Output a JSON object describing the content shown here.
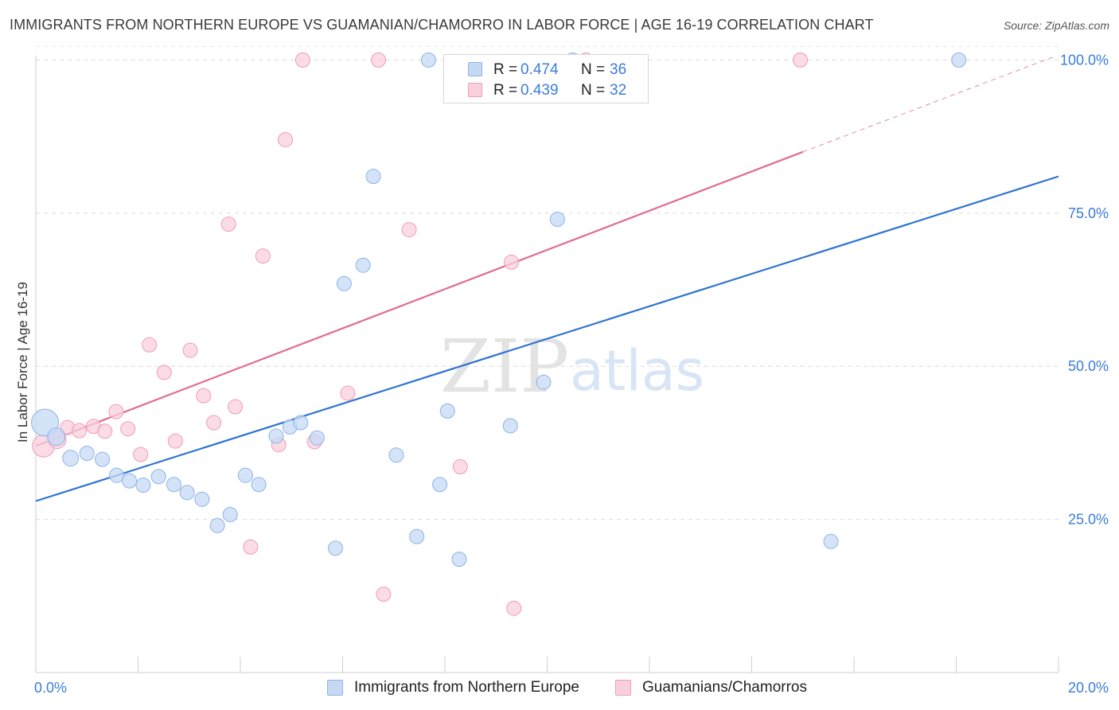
{
  "title": "IMMIGRANTS FROM NORTHERN EUROPE VS GUAMANIAN/CHAMORRO IN LABOR FORCE | AGE 16-19 CORRELATION CHART",
  "source": "Source: ZipAtlas.com",
  "watermark": {
    "zip": "ZIP",
    "atlas": "atlas"
  },
  "legend": {
    "r_label": "R =",
    "n_label": "N =",
    "rows": [
      {
        "r": "0.474",
        "n": "36"
      },
      {
        "r": "0.439",
        "n": "32"
      }
    ]
  },
  "colors": {
    "blue_fill": "#c5d9f5",
    "blue_stroke": "#8db3e8",
    "blue_line": "#2f74d0",
    "pink_fill": "#f9cfdc",
    "pink_stroke": "#ef9db6",
    "pink_line": "#e06b93",
    "tick_text": "#3b7dd8"
  },
  "chart_data": {
    "type": "scatter",
    "title": "IMMIGRANTS FROM NORTHERN EUROPE VS GUAMANIAN/CHAMORRO IN LABOR FORCE | AGE 16-19 CORRELATION CHART",
    "xlabel": "",
    "ylabel": "In Labor Force | Age 16-19",
    "xlim": [
      0,
      20
    ],
    "ylim": [
      0,
      102
    ],
    "x_tick_labels": [
      "0.0%",
      "20.0%"
    ],
    "y_ticks": [
      25,
      50,
      75,
      100
    ],
    "y_tick_labels": [
      "25.0%",
      "50.0%",
      "75.0%",
      "100.0%"
    ],
    "grid": true,
    "legend_position": "top-center",
    "series": [
      {
        "name": "Immigrants from Northern Europe",
        "r": 0.474,
        "n": 36,
        "trend": {
          "x0": 0,
          "y0": 28.0,
          "x1": 20,
          "y1": 81.0
        },
        "points": [
          [
            0.18,
            40.8,
            17
          ],
          [
            0.4,
            38.5,
            11
          ],
          [
            0.68,
            35.0,
            10
          ],
          [
            1.0,
            35.8,
            9
          ],
          [
            1.3,
            34.8,
            9
          ],
          [
            1.58,
            32.2,
            9
          ],
          [
            1.83,
            31.3,
            9
          ],
          [
            2.1,
            30.6,
            9
          ],
          [
            2.4,
            32.0,
            9
          ],
          [
            2.7,
            30.7,
            9
          ],
          [
            2.96,
            29.4,
            9
          ],
          [
            3.25,
            28.3,
            9
          ],
          [
            3.55,
            24.0,
            9
          ],
          [
            3.8,
            25.8,
            9
          ],
          [
            4.1,
            32.2,
            9
          ],
          [
            4.36,
            30.7,
            9
          ],
          [
            4.7,
            38.6,
            9
          ],
          [
            4.97,
            40.1,
            9
          ],
          [
            5.18,
            40.8,
            9
          ],
          [
            5.5,
            38.3,
            9
          ],
          [
            5.86,
            20.3,
            9
          ],
          [
            6.03,
            63.5,
            9
          ],
          [
            6.4,
            66.5,
            9
          ],
          [
            6.6,
            81.0,
            9
          ],
          [
            7.05,
            35.5,
            9
          ],
          [
            7.45,
            22.2,
            9
          ],
          [
            7.68,
            100.0,
            9
          ],
          [
            7.9,
            30.7,
            9
          ],
          [
            8.05,
            42.7,
            9
          ],
          [
            8.28,
            18.5,
            9
          ],
          [
            9.28,
            40.3,
            9
          ],
          [
            9.93,
            47.4,
            9
          ],
          [
            10.2,
            74.0,
            9
          ],
          [
            10.5,
            100.0,
            9
          ],
          [
            15.55,
            21.4,
            9
          ],
          [
            18.05,
            100.0,
            9
          ]
        ]
      },
      {
        "name": "Guamanians/Chamorros",
        "r": 0.439,
        "n": 32,
        "trend": {
          "x0": 0,
          "y0": 37.0,
          "x1": 15,
          "y1": 85.0,
          "dash_x1": 19.9,
          "dash_y1": 100.5
        },
        "points": [
          [
            0.15,
            37.0,
            14
          ],
          [
            0.42,
            38.0,
            11
          ],
          [
            0.62,
            40.0,
            9
          ],
          [
            0.85,
            39.5,
            9
          ],
          [
            1.13,
            40.2,
            9
          ],
          [
            1.35,
            39.4,
            9
          ],
          [
            1.57,
            42.6,
            9
          ],
          [
            1.8,
            39.8,
            9
          ],
          [
            2.05,
            35.6,
            9
          ],
          [
            2.22,
            53.5,
            9
          ],
          [
            2.51,
            49.0,
            9
          ],
          [
            2.73,
            37.8,
            9
          ],
          [
            3.02,
            52.6,
            9
          ],
          [
            3.28,
            45.2,
            9
          ],
          [
            3.48,
            40.8,
            9
          ],
          [
            3.77,
            73.2,
            9
          ],
          [
            3.9,
            43.4,
            9
          ],
          [
            4.2,
            20.5,
            9
          ],
          [
            4.44,
            68.0,
            9
          ],
          [
            4.75,
            37.2,
            9
          ],
          [
            4.88,
            87.0,
            9
          ],
          [
            5.22,
            100.0,
            9
          ],
          [
            5.45,
            37.7,
            9
          ],
          [
            6.1,
            45.6,
            9
          ],
          [
            6.7,
            100.0,
            9
          ],
          [
            6.8,
            12.8,
            9
          ],
          [
            7.3,
            72.3,
            9
          ],
          [
            8.3,
            33.6,
            9
          ],
          [
            9.3,
            67.0,
            9
          ],
          [
            9.35,
            10.5,
            9
          ],
          [
            10.76,
            100.0,
            9
          ],
          [
            14.95,
            100.0,
            9
          ]
        ]
      }
    ]
  }
}
